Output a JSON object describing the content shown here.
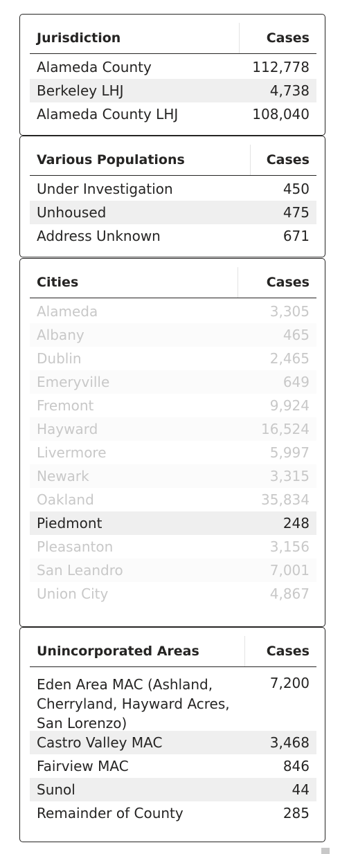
{
  "jurisdiction": {
    "header": {
      "name": "Jurisdiction",
      "cases": "Cases"
    },
    "rows": [
      {
        "name": "Alameda County",
        "cases": "112,778"
      },
      {
        "name": "Berkeley LHJ",
        "cases": "4,738"
      },
      {
        "name": "Alameda County LHJ",
        "cases": "108,040"
      }
    ]
  },
  "populations": {
    "header": {
      "name": "Various Populations",
      "cases": "Cases"
    },
    "rows": [
      {
        "name": "Under Investigation",
        "cases": "450"
      },
      {
        "name": "Unhoused",
        "cases": "475"
      },
      {
        "name": "Address Unknown",
        "cases": "671"
      }
    ]
  },
  "cities": {
    "header": {
      "name": "Cities",
      "cases": "Cases"
    },
    "rows": [
      {
        "name": "Alameda",
        "cases": "3,305"
      },
      {
        "name": "Albany",
        "cases": "465"
      },
      {
        "name": "Dublin",
        "cases": "2,465"
      },
      {
        "name": "Emeryville",
        "cases": "649"
      },
      {
        "name": "Fremont",
        "cases": "9,924"
      },
      {
        "name": "Hayward",
        "cases": "16,524"
      },
      {
        "name": "Livermore",
        "cases": "5,997"
      },
      {
        "name": "Newark",
        "cases": "3,315"
      },
      {
        "name": "Oakland",
        "cases": "35,834"
      },
      {
        "name": "Piedmont",
        "cases": "248"
      },
      {
        "name": "Pleasanton",
        "cases": "3,156"
      },
      {
        "name": "San Leandro",
        "cases": "7,001"
      },
      {
        "name": "Union City",
        "cases": "4,867"
      }
    ]
  },
  "unincorporated": {
    "header": {
      "name": "Unincorporated Areas",
      "cases": "Cases"
    },
    "rows": [
      {
        "name": "Eden Area MAC (Ashland, Cherryland, Hayward Acres, San Lorenzo)",
        "cases": "7,200"
      },
      {
        "name": "Castro Valley MAC",
        "cases": "3,468"
      },
      {
        "name": "Fairview MAC",
        "cases": "846"
      },
      {
        "name": "Sunol",
        "cases": "44"
      },
      {
        "name": "Remainder of County",
        "cases": "285"
      }
    ]
  },
  "colors": {
    "border": "#252423",
    "alt_row": "#efefef",
    "dimmed_text": "#c8c8c8",
    "text": "#252423"
  }
}
